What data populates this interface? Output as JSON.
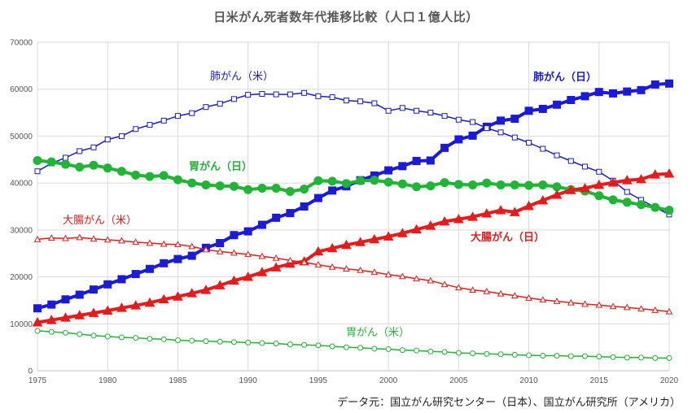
{
  "chart_data": {
    "type": "line",
    "title": "日米がん死者数年代推移比較（人口１億人比）",
    "source": "データ元：国立がん研究センター（日本）、国立がん研究所（アメリカ）",
    "xlabel": "",
    "ylabel": "",
    "xlim": [
      1975,
      2020
    ],
    "ylim": [
      0,
      70000
    ],
    "x_ticks": [
      1975,
      1980,
      1985,
      1990,
      1995,
      2000,
      2005,
      2010,
      2015,
      2020
    ],
    "y_ticks": [
      0,
      10000,
      20000,
      30000,
      40000,
      50000,
      60000,
      70000
    ],
    "grid": true,
    "legend": "none",
    "x": [
      1975,
      1976,
      1977,
      1978,
      1979,
      1980,
      1981,
      1982,
      1983,
      1984,
      1985,
      1986,
      1987,
      1988,
      1989,
      1990,
      1991,
      1992,
      1993,
      1994,
      1995,
      1996,
      1997,
      1998,
      1999,
      2000,
      2001,
      2002,
      2003,
      2004,
      2005,
      2006,
      2007,
      2008,
      2009,
      2010,
      2011,
      2012,
      2013,
      2014,
      2015,
      2016,
      2017,
      2018,
      2019,
      2020
    ],
    "series": [
      {
        "name": "肺がん（日）",
        "color": "#1a1adb",
        "marker": "square",
        "filled": true,
        "bold": true,
        "values": [
          13300,
          14100,
          15200,
          16200,
          17300,
          18400,
          19500,
          20600,
          21700,
          22900,
          23800,
          24500,
          26200,
          27200,
          28900,
          29700,
          31100,
          32600,
          33600,
          35000,
          36800,
          38400,
          39300,
          40600,
          41600,
          42700,
          43600,
          44700,
          44800,
          47500,
          49300,
          50100,
          52000,
          53300,
          53700,
          55400,
          55800,
          56700,
          57700,
          58500,
          59400,
          59100,
          59500,
          59800,
          61000,
          61200
        ]
      },
      {
        "name": "肺がん（米）",
        "color": "#1a1adb",
        "marker": "square",
        "filled": false,
        "bold": false,
        "values": [
          42500,
          44200,
          45400,
          46800,
          47600,
          49300,
          50000,
          51500,
          52400,
          53300,
          54300,
          54900,
          56200,
          56900,
          57900,
          58800,
          59000,
          58900,
          58900,
          59200,
          58500,
          58300,
          57600,
          57400,
          57000,
          55400,
          56000,
          55400,
          55000,
          54300,
          53500,
          53000,
          51700,
          50800,
          49700,
          48600,
          47300,
          45900,
          44700,
          43500,
          42400,
          40500,
          38100,
          36400,
          34800,
          33300
        ]
      },
      {
        "name": "胃がん（日）",
        "color": "#1fb535",
        "marker": "circle",
        "filled": true,
        "bold": true,
        "values": [
          44800,
          44500,
          44000,
          43400,
          43800,
          43200,
          42500,
          41700,
          41400,
          41600,
          40700,
          40000,
          39600,
          39400,
          39300,
          38600,
          38900,
          38900,
          38200,
          38700,
          40500,
          40400,
          39900,
          40500,
          40600,
          40200,
          39800,
          39200,
          39400,
          40100,
          39700,
          39600,
          40000,
          39600,
          39600,
          39500,
          39600,
          39200,
          38600,
          38300,
          37300,
          36400,
          35900,
          35400,
          34800,
          34200
        ]
      },
      {
        "name": "胃がん（米）",
        "color": "#1fb535",
        "marker": "circle",
        "filled": false,
        "bold": false,
        "values": [
          8500,
          8300,
          8100,
          7800,
          7500,
          7300,
          7100,
          7000,
          6800,
          6700,
          6500,
          6400,
          6300,
          6200,
          6100,
          6000,
          5900,
          5800,
          5600,
          5500,
          5400,
          5200,
          5000,
          4900,
          4700,
          4600,
          4400,
          4300,
          4100,
          4000,
          3800,
          3700,
          3600,
          3500,
          3400,
          3300,
          3200,
          3200,
          3100,
          3100,
          3000,
          2900,
          2800,
          2800,
          2700,
          2700
        ]
      },
      {
        "name": "大腸がん（日）",
        "color": "#e81a1a",
        "marker": "triangle",
        "filled": true,
        "bold": true,
        "values": [
          10300,
          10800,
          11300,
          11800,
          12300,
          12800,
          13400,
          13900,
          14500,
          15200,
          15800,
          16500,
          17200,
          18200,
          19200,
          20000,
          21000,
          22000,
          22800,
          23300,
          25400,
          26100,
          26800,
          27400,
          28000,
          28600,
          29300,
          30100,
          30900,
          31800,
          32300,
          32800,
          33500,
          34200,
          33800,
          35100,
          36300,
          37500,
          38500,
          38900,
          39600,
          40100,
          40600,
          40800,
          41800,
          42000
        ]
      },
      {
        "name": "大腸がん（米）",
        "color": "#e81a1a",
        "marker": "triangle",
        "filled": false,
        "bold": false,
        "values": [
          28000,
          28300,
          28200,
          28400,
          28100,
          27900,
          27700,
          27400,
          27200,
          27000,
          26900,
          26500,
          25800,
          25400,
          25100,
          24800,
          24400,
          24000,
          23500,
          23100,
          22600,
          22100,
          21700,
          21400,
          21000,
          20500,
          20100,
          19600,
          19200,
          18400,
          17700,
          17200,
          16900,
          16400,
          16000,
          15500,
          15100,
          14800,
          14500,
          14200,
          14000,
          13700,
          13500,
          13200,
          12900,
          12600
        ]
      }
    ]
  }
}
